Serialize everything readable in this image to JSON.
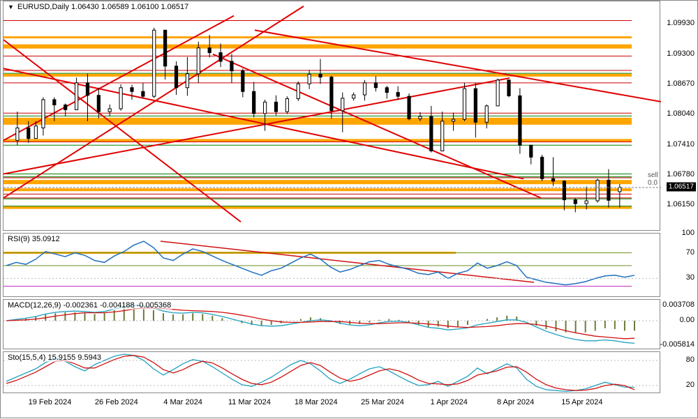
{
  "main": {
    "title_symbol": "EURUSD,Daily",
    "ohlc": [
      "1.06430",
      "1.06589",
      "1.06100",
      "1.06517"
    ],
    "ymin": 1.056,
    "ymax": 1.104,
    "yticks": [
      1.0993,
      1.093,
      1.0867,
      1.0804,
      1.0741,
      1.0678,
      1.0615
    ],
    "current_price": 1.06517,
    "current_price_label": "1.06517",
    "sell_label": "sell\n0.0",
    "background": "#ffffff",
    "text_color": "#000000",
    "hlines_green": [
      1.089,
      1.0801,
      1.074,
      1.068,
      1.0674,
      1.0628,
      1.0613,
      1.1
    ],
    "hlines_red": [
      1.0926,
      1.0896,
      1.087,
      1.0807,
      1.0747,
      1.0672,
      1.0638,
      1.063,
      1.1
    ],
    "hlines_orange": [
      [
        1.0965,
        3
      ],
      [
        1.0946,
        6
      ],
      [
        1.0886,
        4
      ],
      [
        1.079,
        10
      ],
      [
        1.075,
        4
      ],
      [
        1.0663,
        6
      ],
      [
        1.0647,
        4
      ],
      [
        1.061,
        4
      ]
    ],
    "green_color": "#008000",
    "red_color_line": "#cc0000",
    "orange_color": "#ffa500",
    "diag_lines": [
      [
        0,
        1.075,
        330,
        1.101
      ],
      [
        0,
        1.096,
        340,
        1.058
      ],
      [
        0,
        1.09,
        745,
        1.067
      ],
      [
        0,
        1.068,
        725,
        1.088
      ],
      [
        360,
        1.098,
        945,
        1.083
      ],
      [
        300,
        1.093,
        770,
        1.063
      ],
      [
        0,
        1.063,
        430,
        1.103
      ]
    ],
    "diag_color": "#e00000",
    "candles": [
      [
        3,
        1.075,
        1.081,
        1.074,
        1.0776,
        1
      ],
      [
        6,
        1.0776,
        1.079,
        1.0745,
        1.0754,
        -1
      ],
      [
        8,
        1.0754,
        1.079,
        1.0755,
        1.078,
        1
      ],
      [
        10,
        1.0776,
        1.084,
        1.076,
        1.0835,
        1
      ],
      [
        13,
        1.0835,
        1.084,
        1.079,
        1.0824,
        -1
      ],
      [
        16,
        1.0824,
        1.0827,
        1.08,
        1.0814,
        -1
      ],
      [
        19,
        1.0814,
        1.0881,
        1.0813,
        1.087,
        1
      ],
      [
        22,
        1.087,
        1.0889,
        1.079,
        1.0844,
        -1
      ],
      [
        25,
        1.0844,
        1.086,
        1.0796,
        1.081,
        -1
      ],
      [
        28,
        1.081,
        1.0825,
        1.08,
        1.0816,
        1
      ],
      [
        31,
        1.0816,
        1.0867,
        1.0812,
        1.086,
        1
      ],
      [
        34,
        1.086,
        1.0866,
        1.0835,
        1.0852,
        -1
      ],
      [
        37,
        1.0852,
        1.087,
        1.0838,
        1.0842,
        -1
      ],
      [
        40,
        1.0842,
        1.0985,
        1.0838,
        1.098,
        1
      ],
      [
        43,
        1.098,
        1.0975,
        1.0877,
        1.0905,
        -1
      ],
      [
        46,
        1.0905,
        1.0915,
        1.0845,
        1.086,
        -1
      ],
      [
        49,
        1.086,
        1.0924,
        1.0843,
        1.0889,
        1
      ],
      [
        52,
        1.0889,
        1.0956,
        1.087,
        1.0943,
        1
      ],
      [
        55,
        1.0943,
        1.097,
        1.0923,
        1.0933,
        -1
      ],
      [
        58,
        1.0933,
        1.0952,
        1.0903,
        1.0915,
        -1
      ],
      [
        61,
        1.0915,
        1.093,
        1.087,
        1.0895,
        -1
      ],
      [
        64,
        1.0895,
        1.09,
        1.084,
        1.0852,
        -1
      ],
      [
        67,
        1.0852,
        1.0872,
        1.0798,
        1.0806,
        -1
      ],
      [
        70,
        1.0806,
        1.0835,
        1.077,
        1.083,
        1
      ],
      [
        73,
        1.083,
        1.0844,
        1.0802,
        1.081,
        -1
      ],
      [
        76,
        1.081,
        1.0842,
        1.0805,
        1.0837,
        1
      ],
      [
        79,
        1.0837,
        1.0873,
        1.0832,
        1.0868,
        1
      ],
      [
        82,
        1.0868,
        1.0897,
        1.0857,
        1.0888,
        1
      ],
      [
        85,
        1.0888,
        1.092,
        1.0868,
        1.0882,
        -1
      ],
      [
        88,
        1.0882,
        1.0885,
        1.0795,
        1.0812,
        -1
      ],
      [
        91,
        1.0812,
        1.085,
        1.0767,
        1.0838,
        1
      ],
      [
        94,
        1.0838,
        1.085,
        1.0833,
        1.0845,
        1
      ],
      [
        97,
        1.0845,
        1.0876,
        1.0833,
        1.087,
        1
      ],
      [
        100,
        1.087,
        1.0884,
        1.0852,
        1.086,
        -1
      ],
      [
        103,
        1.086,
        1.0864,
        1.0837,
        1.085,
        -1
      ],
      [
        106,
        1.085,
        1.0863,
        1.0835,
        1.0842,
        -1
      ],
      [
        109,
        1.0842,
        1.0848,
        1.0792,
        1.0795,
        -1
      ],
      [
        112,
        1.0795,
        1.0809,
        1.079,
        1.08,
        1
      ],
      [
        115,
        1.08,
        1.0822,
        1.0725,
        1.0728,
        -1
      ],
      [
        118,
        1.0728,
        1.081,
        1.0729,
        1.079,
        1
      ],
      [
        121,
        1.079,
        1.0808,
        1.077,
        1.0794,
        1
      ],
      [
        124,
        1.0794,
        1.087,
        1.079,
        1.0858,
        1
      ],
      [
        127,
        1.0858,
        1.087,
        1.0756,
        1.0788,
        -1
      ],
      [
        130,
        1.0788,
        1.0825,
        1.0775,
        1.0822,
        1
      ],
      [
        133,
        1.0822,
        1.0879,
        1.0822,
        1.0876,
        1
      ],
      [
        136,
        1.0876,
        1.0847,
        1.084,
        1.0843,
        -1
      ],
      [
        139,
        1.0843,
        1.0859,
        1.0722,
        1.074,
        -1
      ],
      [
        142,
        1.074,
        1.0734,
        1.07,
        1.0715,
        -1
      ],
      [
        145,
        1.0715,
        1.072,
        1.0665,
        1.067,
        -1
      ],
      [
        148,
        1.067,
        1.0715,
        1.0655,
        1.0665,
        -1
      ],
      [
        151,
        1.0665,
        1.0667,
        1.0604,
        1.0626,
        -1
      ],
      [
        154,
        1.0626,
        1.063,
        1.06,
        1.0618,
        -1
      ],
      [
        157,
        1.0618,
        1.0654,
        1.0606,
        1.0624,
        1
      ],
      [
        160,
        1.0624,
        1.067,
        1.062,
        1.0667,
        1
      ],
      [
        163,
        1.0667,
        1.069,
        1.061,
        1.0625,
        -1
      ],
      [
        166,
        1.0643,
        1.0659,
        1.061,
        1.0652,
        1
      ]
    ],
    "candle_up_fill": "#ffffff",
    "candle_down_fill": "#000000",
    "xn": 170
  },
  "rsi": {
    "label": "RSI(9) 35.0912",
    "ymin": 0,
    "ymax": 100,
    "yticks": [
      100,
      70,
      30
    ],
    "levels_green": [
      70,
      50
    ],
    "levels_orange": [
      [
        70,
        3
      ]
    ],
    "levels_magenta": [
      18
    ],
    "line_color": "#2070c0",
    "diag_lines": [
      [
        225,
        88,
        760,
        24
      ]
    ],
    "values": [
      50,
      55,
      52,
      60,
      72,
      68,
      64,
      70,
      66,
      58,
      55,
      65,
      72,
      82,
      88,
      78,
      62,
      58,
      68,
      76,
      72,
      65,
      58,
      52,
      46,
      40,
      35,
      42,
      46,
      54,
      62,
      68,
      60,
      48,
      40,
      44,
      50,
      56,
      58,
      52,
      48,
      44,
      38,
      36,
      40,
      30,
      38,
      42,
      54,
      46,
      50,
      56,
      50,
      32,
      28,
      24,
      22,
      20,
      22,
      25,
      30,
      34,
      35,
      32,
      35
    ]
  },
  "macd": {
    "label": "MACD(12,26,9) -0.002361 -0.004188 -0.005368",
    "ymin": -0.007,
    "ymax": 0.005,
    "yticks": [
      "0.003708",
      "0.00",
      "-0.005814"
    ],
    "ytick_vals": [
      0.003708,
      0.0,
      -0.005814
    ],
    "hist_color": "#6b7d3a",
    "macd_color": "#d01010",
    "signal_color": "#20a0c0",
    "hist": [
      0,
      0.0004,
      0.0006,
      0.001,
      0.0015,
      0.0018,
      0.002,
      0.002,
      0.0018,
      0.0016,
      0.0018,
      0.0025,
      0.003,
      0.0033,
      0.003,
      0.0025,
      0.0018,
      0.0015,
      0.0015,
      0.0018,
      0.0016,
      0.0012,
      0.0006,
      0,
      -0.0006,
      -0.001,
      -0.0012,
      -0.001,
      -0.0006,
      0,
      0.0004,
      0.0008,
      0.0006,
      0,
      -0.0008,
      -0.001,
      -0.0008,
      -0.0004,
      0.0002,
      0.0004,
      0.0002,
      -0.0004,
      -0.001,
      -0.0015,
      -0.0014,
      -0.0018,
      -0.0014,
      -0.001,
      0,
      0.0004,
      0.0008,
      0.0012,
      0.001,
      0,
      -0.0012,
      -0.002,
      -0.0025,
      -0.0028,
      -0.003,
      -0.0028,
      -0.0024,
      -0.0018,
      -0.002,
      -0.0024,
      -0.0024
    ],
    "macd": [
      0,
      0.0003,
      0.0006,
      0.001,
      0.0016,
      0.002,
      0.0022,
      0.0023,
      0.0022,
      0.002,
      0.0022,
      0.0028,
      0.0034,
      0.0037,
      0.0035,
      0.003,
      0.0023,
      0.0019,
      0.0018,
      0.002,
      0.0019,
      0.0015,
      0.001,
      0.0004,
      -0.0002,
      -0.0008,
      -0.0012,
      -0.0013,
      -0.0012,
      -0.0008,
      -0.0004,
      0,
      0.0002,
      0,
      -0.0006,
      -0.001,
      -0.0012,
      -0.001,
      -0.0005,
      -0.0002,
      -0.0001,
      -0.0004,
      -0.001,
      -0.0016,
      -0.0018,
      -0.0022,
      -0.002,
      -0.0017,
      -0.001,
      -0.0006,
      -0.0002,
      0.0002,
      0.0002,
      -0.0004,
      -0.0015,
      -0.0025,
      -0.0033,
      -0.004,
      -0.0045,
      -0.0048,
      -0.0048,
      -0.0046,
      -0.0048,
      -0.0052,
      -0.0054
    ],
    "signal": [
      0,
      0.0001,
      0.0002,
      0.0004,
      0.0007,
      0.0011,
      0.0014,
      0.0017,
      0.0019,
      0.0019,
      0.0019,
      0.0021,
      0.0024,
      0.0028,
      0.003,
      0.003,
      0.0029,
      0.0027,
      0.0025,
      0.0024,
      0.0023,
      0.0022,
      0.002,
      0.0017,
      0.0013,
      0.0009,
      0.0004,
      0,
      -0.0003,
      -0.0004,
      -0.0004,
      -0.0003,
      -0.0002,
      -0.0002,
      -0.0002,
      -0.0004,
      -0.0006,
      -0.0007,
      -0.0007,
      -0.0006,
      -0.0005,
      -0.0005,
      -0.0006,
      -0.0008,
      -0.001,
      -0.0013,
      -0.0015,
      -0.0016,
      -0.0015,
      -0.0014,
      -0.0012,
      -0.0009,
      -0.0007,
      -0.0007,
      -0.0009,
      -0.0013,
      -0.0018,
      -0.0024,
      -0.0029,
      -0.0033,
      -0.0037,
      -0.0039,
      -0.0041,
      -0.0043,
      -0.0042
    ]
  },
  "sto": {
    "label": "Sto(15,5,4) 15.9155 9.5943",
    "ymin": 0,
    "ymax": 100,
    "yticks": [
      80,
      20
    ],
    "k_color": "#20a0c0",
    "d_color": "#d01010",
    "k": [
      30,
      40,
      50,
      60,
      75,
      85,
      78,
      65,
      55,
      70,
      80,
      90,
      95,
      92,
      80,
      60,
      45,
      58,
      72,
      82,
      78,
      65,
      50,
      35,
      22,
      18,
      28,
      40,
      55,
      70,
      80,
      72,
      55,
      35,
      25,
      35,
      48,
      60,
      65,
      55,
      42,
      30,
      20,
      22,
      30,
      18,
      30,
      42,
      62,
      48,
      60,
      72,
      62,
      35,
      18,
      10,
      8,
      6,
      8,
      12,
      20,
      28,
      22,
      16,
      16
    ],
    "d": [
      25,
      32,
      42,
      52,
      65,
      78,
      80,
      72,
      62,
      62,
      72,
      82,
      90,
      92,
      88,
      75,
      58,
      50,
      58,
      70,
      78,
      74,
      62,
      48,
      35,
      25,
      22,
      28,
      40,
      54,
      68,
      75,
      68,
      52,
      38,
      30,
      35,
      45,
      55,
      60,
      55,
      45,
      33,
      25,
      24,
      22,
      24,
      32,
      45,
      50,
      55,
      64,
      65,
      52,
      35,
      22,
      14,
      10,
      8,
      9,
      13,
      20,
      23,
      20,
      10
    ]
  },
  "xaxis": {
    "ticks": [
      [
        12,
        "19 Feb 2024"
      ],
      [
        30,
        "26 Feb 2024"
      ],
      [
        48,
        "4 Mar 2024"
      ],
      [
        66,
        "11 Mar 2024"
      ],
      [
        84,
        "18 Mar 2024"
      ],
      [
        102,
        "25 Mar 2024"
      ],
      [
        120,
        "1 Apr 2024"
      ],
      [
        138,
        "8 Apr 2024"
      ],
      [
        156,
        "15 Apr 2024"
      ]
    ]
  }
}
